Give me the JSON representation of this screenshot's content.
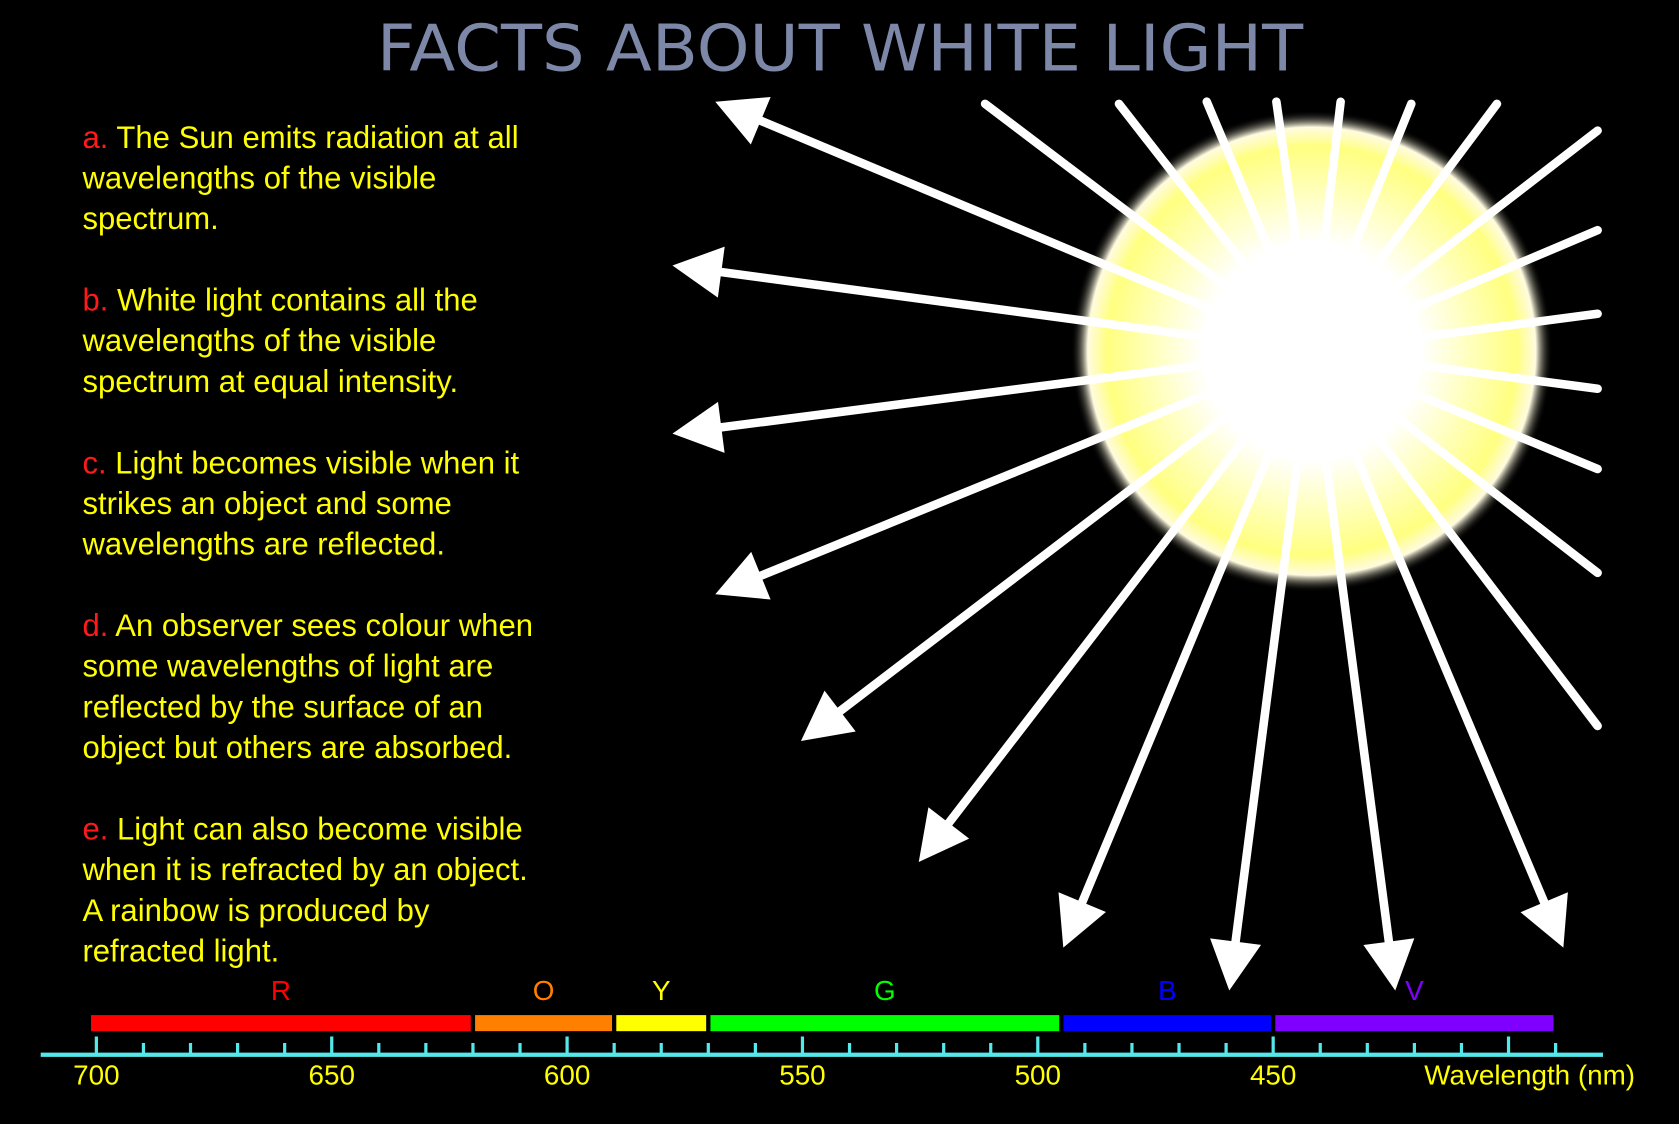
{
  "title": "FACTS ABOUT WHITE LIGHT",
  "colors": {
    "title": "#7d88a8",
    "fact_label": "#ff1a1a",
    "fact_text": "#ffff00",
    "axis": "#55e8ea",
    "axis_labels": "#ffff00",
    "rays": "#ffffff",
    "sun_core": "#ffffff",
    "sun_rim": "#ffff80"
  },
  "facts": [
    {
      "label": "a.",
      "lines": [
        "The Sun emits radiation at all",
        "wavelengths of the visible",
        "spectrum."
      ]
    },
    {
      "label": "b.",
      "lines": [
        "White light contains all the",
        "wavelengths of the visible",
        "spectrum at equal intensity."
      ]
    },
    {
      "label": "c.",
      "lines": [
        "Light becomes visible when it",
        "strikes an object and some",
        "wavelengths are reflected."
      ]
    },
    {
      "label": "d.",
      "lines": [
        "An observer sees colour when",
        "some wavelengths of light are",
        "reflected by the surface of an",
        "object but others are absorbed."
      ]
    },
    {
      "label": "e.",
      "lines": [
        "Light can also become visible",
        "when it is refracted by an object.",
        "A rainbow is produced by",
        "refracted light."
      ]
    }
  ],
  "spectrum": {
    "axis_label": "Wavelength (nm)",
    "range_nm": [
      700,
      390
    ],
    "tick_step_nm": 10,
    "major_ticks_nm": [
      700,
      650,
      600,
      550,
      500,
      450,
      400
    ],
    "tick_labels": [
      "700",
      "650",
      "600",
      "550",
      "500",
      "450"
    ],
    "bands": [
      {
        "letter": "R",
        "from": 700,
        "to": 620,
        "color": "#ff0000"
      },
      {
        "letter": "O",
        "from": 620,
        "to": 590,
        "color": "#ff8000"
      },
      {
        "letter": "Y",
        "from": 590,
        "to": 570,
        "color": "#ffff00"
      },
      {
        "letter": "G",
        "from": 570,
        "to": 495,
        "color": "#00ff00"
      },
      {
        "letter": "B",
        "from": 495,
        "to": 450,
        "color": "#0000ff"
      },
      {
        "letter": "V",
        "from": 450,
        "to": 390,
        "color": "#8000ff"
      }
    ]
  }
}
